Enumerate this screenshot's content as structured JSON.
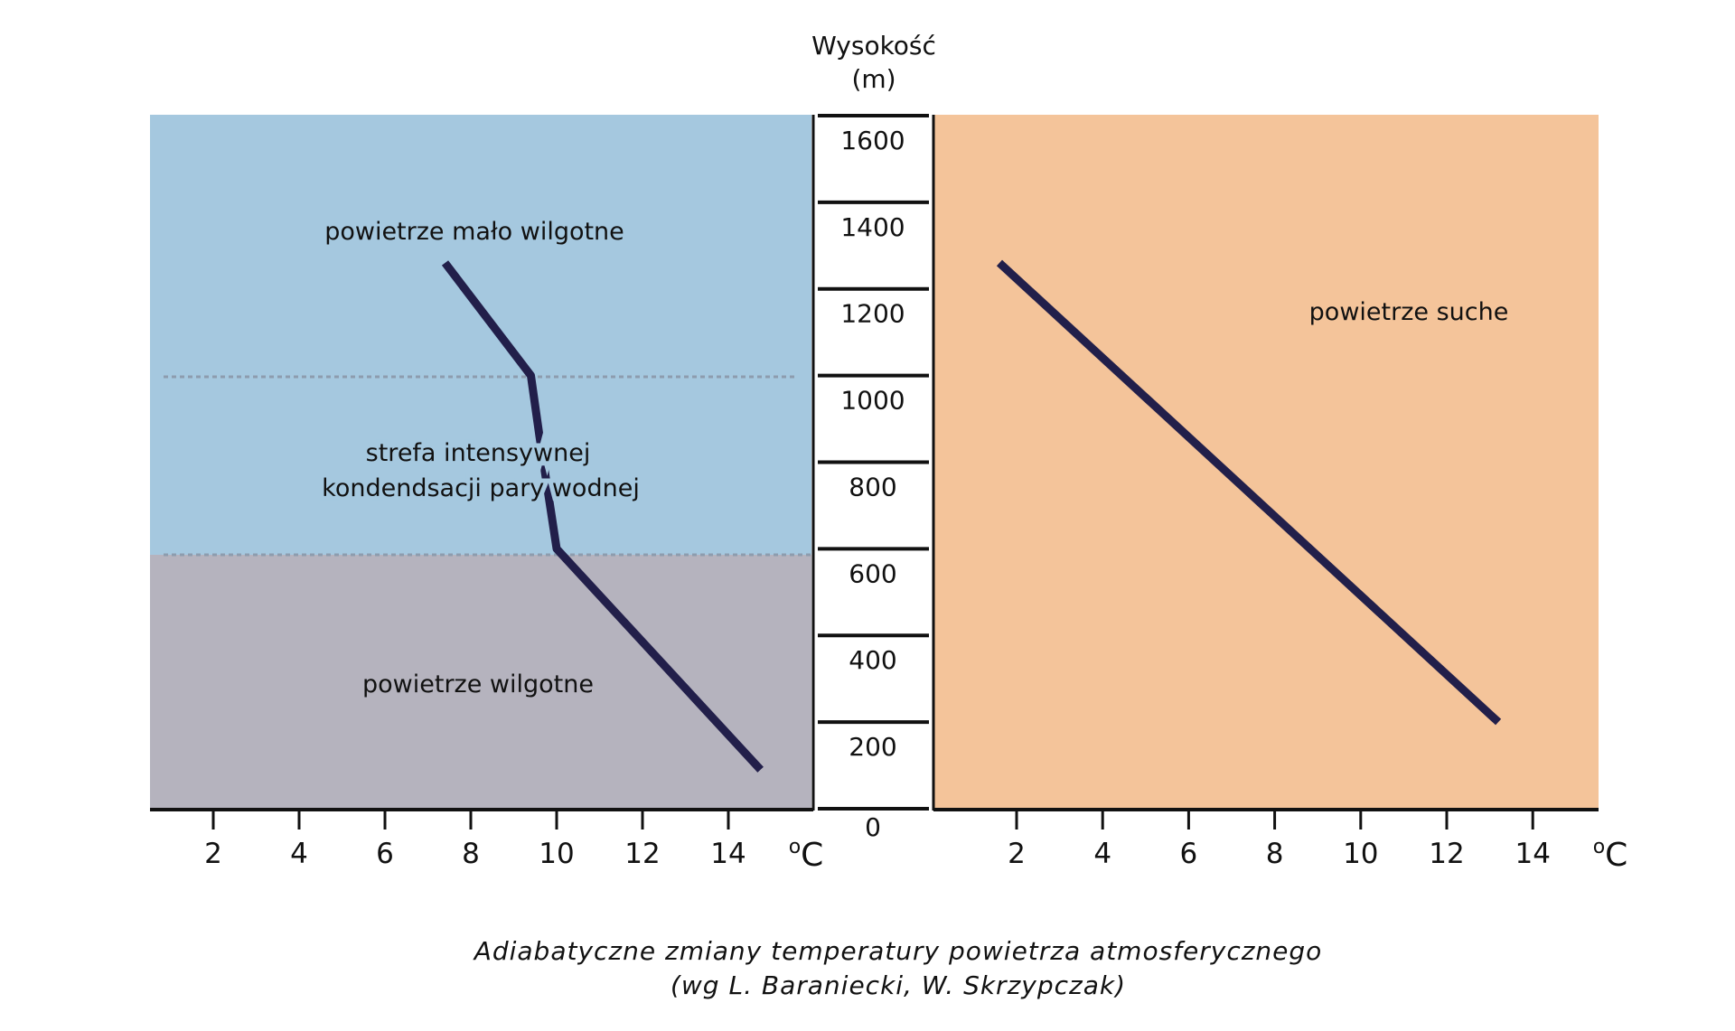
{
  "chart_data": [
    {
      "type": "line",
      "panel": "left",
      "xlabel": "oC",
      "ylabel": "Wysokość (m)",
      "x_ticks": [
        2,
        4,
        6,
        8,
        10,
        12,
        14
      ],
      "y_ticks": [
        0,
        200,
        400,
        600,
        800,
        1000,
        1200,
        1400,
        1600
      ],
      "ylim": [
        0,
        1600
      ],
      "series": [
        {
          "x": [
            7.4,
            9.4,
            9.6,
            10.0,
            14.75
          ],
          "y": [
            1260,
            1000,
            860,
            600,
            90
          ]
        }
      ],
      "zones": [
        {
          "label": "powietrze mało wilgotne",
          "from": 1000,
          "to": 1600,
          "color": "#a5c8df"
        },
        {
          "label_lines": [
            "strefa intensywnej",
            "kondendsacji pary wodnej"
          ],
          "from": 600,
          "to": 1000,
          "color": "#a5c8df"
        },
        {
          "label": "powietrze wilgotne",
          "from": 0,
          "to": 600,
          "color": "#b5b3be"
        }
      ]
    },
    {
      "type": "line",
      "panel": "right",
      "xlabel": "oC",
      "x_ticks": [
        2,
        4,
        6,
        8,
        10,
        12,
        14
      ],
      "ylim": [
        0,
        1600
      ],
      "series": [
        {
          "x": [
            1.6,
            13.2
          ],
          "y": [
            1260,
            200
          ]
        }
      ],
      "zones": [
        {
          "label": "powietrze suche",
          "from": 0,
          "to": 1600,
          "color": "#f4c49a"
        }
      ]
    }
  ],
  "axis": {
    "title_line1": "Wysokość",
    "title_line2": "(m)",
    "unit_o": "o",
    "unit_c": "C"
  },
  "caption": {
    "line1": "Adiabatyczne zmiany  temperatury powietrza atmosferycznego",
    "line2": "(wg L. Baraniecki, W. Skrzypczak)"
  },
  "colors": {
    "line": "#221f4a",
    "moist_top": "#a5c8df",
    "moist_bottom": "#b5b3be",
    "dry": "#f4c49a",
    "dotted": "#8d9cae"
  }
}
